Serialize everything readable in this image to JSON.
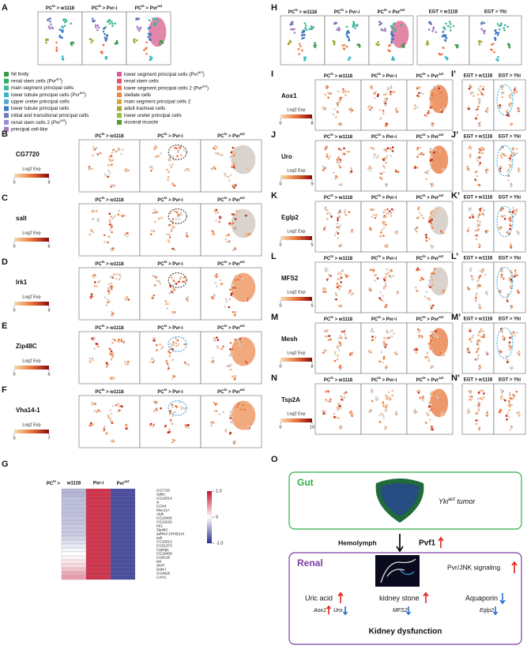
{
  "conditions_pc": [
    [
      "PC",
      {
        "sup": "ts"
      },
      " > w1118"
    ],
    [
      "PC",
      {
        "sup": "ts"
      },
      " > Pvr-i"
    ],
    [
      "PC",
      {
        "sup": "ts"
      },
      " > Pvr",
      {
        "sup": "act"
      }
    ]
  ],
  "conditions_egt": [
    "EGT > w1118",
    "EGT > Yki"
  ],
  "colorbar_label": "Log2 Exp",
  "panel_a": {
    "letter": "A",
    "legend": [
      {
        "label": "fat body",
        "color": "#3a9a4a"
      },
      {
        "label": [
          "renal stem cells (Pvr",
          {
            "sup": "act"
          },
          ")"
        ],
        "color": "#2fae66"
      },
      {
        "label": "main segment principal cells",
        "color": "#40b59b"
      },
      {
        "label": [
          "lower tubule principal cells (Pvr",
          {
            "sup": "act"
          },
          ")"
        ],
        "color": "#36b8c4"
      },
      {
        "label": "upper ureter principal cells",
        "color": "#5aa7d8"
      },
      {
        "label": "lower tubule principal cells",
        "color": "#3d78c3"
      },
      {
        "label": "initial and transitional principal cells",
        "color": "#6a7cb8"
      },
      {
        "label": [
          "renal stem cells 2 (Pvr",
          {
            "sup": "act"
          },
          ")"
        ],
        "color": "#9a8fd0"
      },
      {
        "label": "principal cell-like",
        "color": "#a07cc0"
      },
      {
        "label": [
          "lower segment principal cells (Pvr",
          {
            "sup": "act"
          },
          ")"
        ],
        "color": "#e0589a"
      },
      {
        "label": "renal stem cells",
        "color": "#e8506a"
      },
      {
        "label": [
          "lower segment principal cells 2 (Pvr",
          {
            "sup": "act"
          },
          ")"
        ],
        "color": "#f07a4a"
      },
      {
        "label": "stellate cells",
        "color": "#f08a3a"
      },
      {
        "label": "main segment principal cells 2",
        "color": "#d9a330"
      },
      {
        "label": "adult tracheal cells",
        "color": "#a5a835"
      },
      {
        "label": "lower ureter principal cells",
        "color": "#8fbf3a"
      },
      {
        "label": "visceral muscle",
        "color": "#5a9a2a"
      }
    ]
  },
  "gene_panels": [
    {
      "letter": "B",
      "gene": "CG7720",
      "scale": [
        0,
        9
      ]
    },
    {
      "letter": "C",
      "gene": "salt",
      "scale": [
        0,
        6
      ]
    },
    {
      "letter": "D",
      "gene": "Irk1",
      "scale": [
        0,
        9
      ]
    },
    {
      "letter": "E",
      "gene": "Zip48C",
      "scale": [
        0,
        6
      ]
    },
    {
      "letter": "F",
      "gene": "Vha14-1",
      "scale": [
        0,
        7
      ]
    }
  ],
  "panel_g": {
    "letter": "G",
    "header": [
      "PC",
      {
        "sup": "ts"
      },
      " >"
    ],
    "columns": [
      "w1118",
      "Pvr-i",
      [
        "Pvr",
        {
          "sup": "act"
        }
      ]
    ],
    "rows": [
      "CG7720",
      "SdhC",
      "CG10514",
      "w",
      "COX4",
      "Muc11A",
      "Aldh",
      "CG15406",
      "CG10226",
      "Irk1",
      "Zip48C",
      "asRNA:CR45214",
      "salt",
      "CG10513",
      "CG31373",
      "Cyp6g1",
      "CG15408",
      "CG8125",
      "tsh",
      "SKIP",
      "Debcl",
      "CG4928",
      "CAH1"
    ],
    "values": [
      [
        -0.35,
        0.85,
        -0.85
      ],
      [
        -0.35,
        0.85,
        -0.85
      ],
      [
        -0.3,
        0.85,
        -0.85
      ],
      [
        -0.3,
        0.85,
        -0.85
      ],
      [
        -0.3,
        0.85,
        -0.85
      ],
      [
        -0.3,
        0.85,
        -0.85
      ],
      [
        -0.3,
        0.85,
        -0.85
      ],
      [
        -0.28,
        0.85,
        -0.85
      ],
      [
        -0.28,
        0.85,
        -0.85
      ],
      [
        -0.25,
        0.85,
        -0.85
      ],
      [
        -0.25,
        0.85,
        -0.85
      ],
      [
        -0.25,
        0.85,
        -0.85
      ],
      [
        -0.2,
        0.85,
        -0.85
      ],
      [
        -0.15,
        0.85,
        -0.85
      ],
      [
        -0.1,
        0.85,
        -0.85
      ],
      [
        -0.05,
        0.85,
        -0.85
      ],
      [
        0,
        0.85,
        -0.85
      ],
      [
        0.05,
        0.85,
        -0.85
      ],
      [
        0.1,
        0.85,
        -0.85
      ],
      [
        0.15,
        0.85,
        -0.85
      ],
      [
        0.25,
        0.85,
        -0.85
      ],
      [
        0.35,
        0.85,
        -0.85
      ],
      [
        0.4,
        0.85,
        -0.85
      ]
    ],
    "clim": [
      -1,
      1
    ],
    "cticks": [
      {
        "value": 1,
        "label": "1.0"
      },
      0,
      {
        "value": -1,
        "label": "-1.0"
      }
    ]
  },
  "panel_h": {
    "letter": "H"
  },
  "right_gene_panels": [
    {
      "letter": "I",
      "letter2": "I’",
      "gene": "Aox1",
      "scale": [
        0,
        8
      ]
    },
    {
      "letter": "J",
      "letter2": "J’",
      "gene": "Uro",
      "scale": [
        0,
        9
      ]
    },
    {
      "letter": "K",
      "letter2": "K’",
      "gene": "Eglp2",
      "scale": [
        0,
        5
      ]
    },
    {
      "letter": "L",
      "letter2": "L’",
      "gene": "MFS2",
      "scale": [
        0,
        6
      ]
    },
    {
      "letter": "M",
      "letter2": "M’",
      "gene": "Mesh",
      "scale": [
        0,
        8
      ]
    },
    {
      "letter": "N",
      "letter2": "N’",
      "gene": "Tsp2A",
      "scale": [
        0,
        10
      ]
    }
  ],
  "panel_o": {
    "letter": "O",
    "gut": "Gut",
    "tumor": [
      "Yki",
      {
        "sup": "act"
      },
      " tumor"
    ],
    "hemolymph": "Hemolymph",
    "pvf1": "Pvf1",
    "renal": "Renal",
    "signaling": "Pvr/JNK signaling",
    "uric": "Uric acid",
    "stone": "kidney stone",
    "aquaporin": "Aquaporin",
    "aox1": "Aox1",
    "uro": "Uro",
    "mfs2": "MFS2",
    "eglp2": "Eglp2",
    "dysfunction": "Kidney dysfunction"
  }
}
